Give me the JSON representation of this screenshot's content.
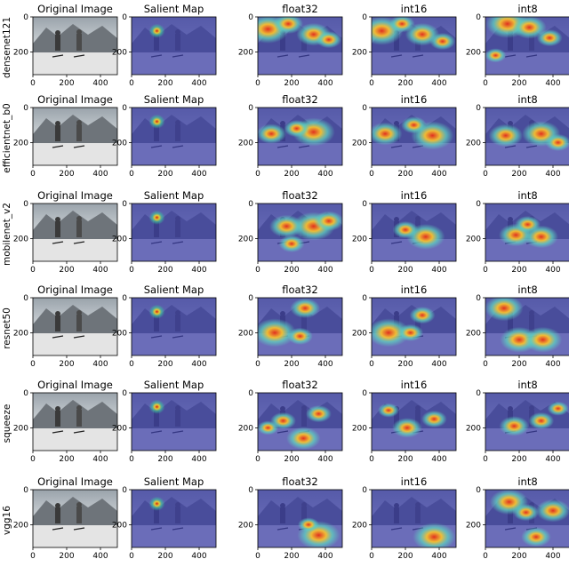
{
  "columns": [
    "Original Image",
    "Salient Map",
    "float32",
    "int16",
    "int8"
  ],
  "rows": [
    "densenet121",
    "efficientnet_b0",
    "mobilenet_v2",
    "resnet50",
    "squeeze",
    "vgg16"
  ],
  "x_ticks": [
    "0",
    "200",
    "400"
  ],
  "y_ticks": [
    "0",
    "200"
  ],
  "x_tick_values": [
    0,
    200,
    400
  ],
  "y_tick_values": [
    0,
    200
  ],
  "x_range": [
    0,
    500
  ],
  "y_range": [
    0,
    330
  ],
  "colors": {
    "background_blue": "#3b3fa8",
    "hot": "#e03020",
    "warm": "#f6c030",
    "mid": "#5fd0c0",
    "snow": "#d8d8d8",
    "sky": "#bfc6cc"
  },
  "heatmaps": {
    "densenet121": {
      "float32": [
        [
          60,
          70,
          1.0
        ],
        [
          330,
          100,
          0.8
        ],
        [
          180,
          40,
          0.7
        ],
        [
          420,
          130,
          0.6
        ]
      ],
      "int16": [
        [
          60,
          80,
          1.0
        ],
        [
          300,
          100,
          0.8
        ],
        [
          180,
          40,
          0.6
        ],
        [
          420,
          140,
          0.6
        ]
      ],
      "int8": [
        [
          130,
          40,
          1.0
        ],
        [
          260,
          60,
          0.8
        ],
        [
          380,
          120,
          0.6
        ],
        [
          60,
          220,
          0.5
        ]
      ]
    },
    "efficientnet_b0": {
      "float32": [
        [
          330,
          140,
          1.0
        ],
        [
          80,
          150,
          0.7
        ],
        [
          230,
          120,
          0.6
        ]
      ],
      "int16": [
        [
          360,
          160,
          1.0
        ],
        [
          80,
          150,
          0.8
        ],
        [
          250,
          100,
          0.6
        ]
      ],
      "int8": [
        [
          330,
          150,
          0.9
        ],
        [
          120,
          160,
          0.8
        ],
        [
          430,
          200,
          0.6
        ]
      ]
    },
    "mobilenet_v2": {
      "float32": [
        [
          330,
          130,
          1.0
        ],
        [
          170,
          130,
          0.8
        ],
        [
          420,
          100,
          0.7
        ],
        [
          200,
          230,
          0.6
        ]
      ],
      "int16": [
        [
          320,
          190,
          0.9
        ],
        [
          200,
          150,
          0.6
        ]
      ],
      "int8": [
        [
          180,
          180,
          0.8
        ],
        [
          330,
          190,
          0.8
        ],
        [
          250,
          120,
          0.6
        ]
      ]
    },
    "resnet50": {
      "float32": [
        [
          100,
          200,
          1.0
        ],
        [
          280,
          60,
          0.7
        ],
        [
          250,
          220,
          0.6
        ]
      ],
      "int16": [
        [
          100,
          200,
          1.0
        ],
        [
          300,
          100,
          0.6
        ],
        [
          230,
          200,
          0.6
        ]
      ],
      "int8": [
        [
          110,
          60,
          0.9
        ],
        [
          200,
          240,
          0.9
        ],
        [
          340,
          240,
          0.9
        ]
      ]
    },
    "squeeze": {
      "float32": [
        [
          270,
          260,
          0.8
        ],
        [
          150,
          160,
          0.6
        ],
        [
          360,
          120,
          0.6
        ],
        [
          60,
          200,
          0.5
        ]
      ],
      "int16": [
        [
          210,
          200,
          0.7
        ],
        [
          370,
          150,
          0.6
        ],
        [
          100,
          100,
          0.5
        ]
      ],
      "int8": [
        [
          170,
          190,
          0.7
        ],
        [
          330,
          160,
          0.6
        ],
        [
          430,
          90,
          0.5
        ]
      ]
    },
    "vgg16": {
      "float32": [
        [
          360,
          260,
          1.0
        ],
        [
          300,
          200,
          0.5
        ]
      ],
      "int16": [
        [
          370,
          270,
          1.0
        ]
      ],
      "int8": [
        [
          140,
          70,
          0.9
        ],
        [
          400,
          120,
          0.8
        ],
        [
          300,
          270,
          0.7
        ],
        [
          240,
          130,
          0.6
        ]
      ]
    }
  },
  "salient_point": [
    150,
    80
  ]
}
